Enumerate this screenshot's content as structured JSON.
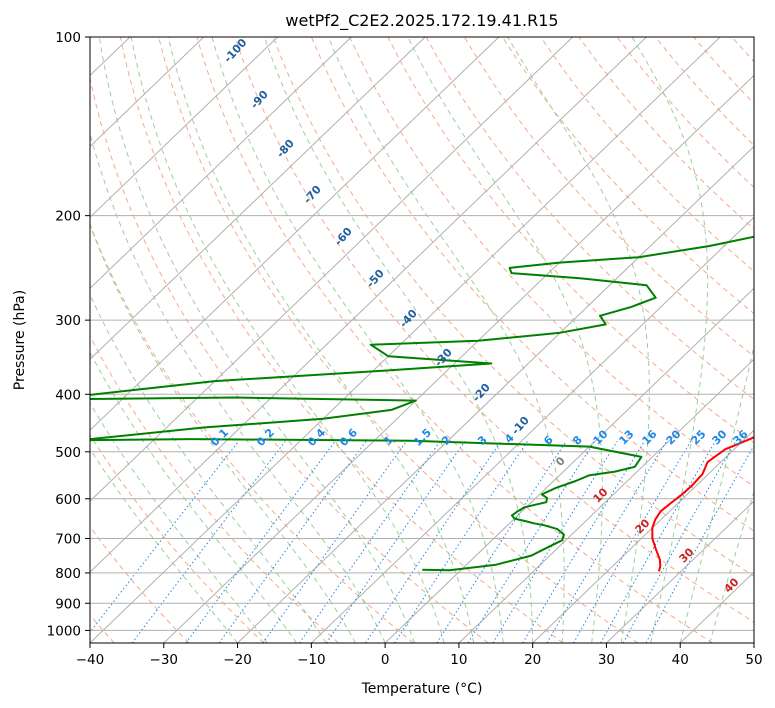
{
  "chart_data": {
    "type": "line",
    "title": "wetPf2_C2E2.2025.172.19.41.R15",
    "xlabel": "Temperature (°C)",
    "ylabel": "Pressure (hPa)",
    "xlim": [
      -40,
      50
    ],
    "ylim": [
      1050,
      100
    ],
    "y_scale": "log",
    "x_ticks": [
      "−40",
      "−30",
      "−20",
      "−10",
      "0",
      "10",
      "20",
      "30",
      "40",
      "50"
    ],
    "x_tick_values": [
      -40,
      -30,
      -20,
      -10,
      0,
      10,
      20,
      30,
      40,
      50
    ],
    "y_ticks": [
      "100",
      "200",
      "300",
      "400",
      "500",
      "600",
      "700",
      "800",
      "900",
      "1000"
    ],
    "y_tick_values": [
      100,
      200,
      300,
      400,
      500,
      600,
      700,
      800,
      900,
      1000
    ],
    "grid": true,
    "skew": "skew-T log-p",
    "series": [
      {
        "role": "temperature",
        "color": "#ff0000",
        "points": [
          [
            27.0,
            795
          ],
          [
            26.5,
            780
          ],
          [
            25.5,
            760
          ],
          [
            23.5,
            730
          ],
          [
            21.5,
            700
          ],
          [
            20.0,
            672
          ],
          [
            19.2,
            650
          ],
          [
            18.8,
            630
          ],
          [
            19.0,
            610
          ],
          [
            19.3,
            590
          ],
          [
            19.4,
            570
          ],
          [
            19.2,
            545
          ],
          [
            18.2,
            520
          ],
          [
            18.8,
            495
          ],
          [
            20.8,
            475
          ],
          [
            21.7,
            460
          ],
          [
            21.2,
            440
          ],
          [
            20.3,
            425
          ],
          [
            20.6,
            410
          ],
          [
            20.5,
            390
          ],
          [
            19.8,
            375
          ],
          [
            18.5,
            360
          ],
          [
            17.0,
            340
          ],
          [
            15.7,
            320
          ],
          [
            14.6,
            303
          ],
          [
            13.8,
            290
          ],
          [
            12.8,
            278
          ],
          [
            11.6,
            265
          ],
          [
            10.4,
            251
          ],
          [
            9.2,
            240
          ],
          [
            8.0,
            228
          ],
          [
            6.8,
            217
          ],
          [
            5.5,
            205
          ],
          [
            4.2,
            193
          ],
          [
            3.0,
            180
          ],
          [
            1.8,
            168
          ],
          [
            0.9,
            158
          ],
          [
            0.4,
            150
          ],
          [
            0.5,
            140
          ],
          [
            0.8,
            130
          ],
          [
            1.5,
            121
          ],
          [
            2.5,
            114
          ],
          [
            3.4,
            108
          ],
          [
            4.2,
            103
          ],
          [
            4.9,
            100
          ]
        ]
      },
      {
        "role": "dewpoint",
        "color": "#008000",
        "points": [
          [
            -5.3,
            790
          ],
          [
            -1.5,
            792
          ],
          [
            4.0,
            775
          ],
          [
            7.5,
            748
          ],
          [
            8.3,
            730
          ],
          [
            9.5,
            705
          ],
          [
            9.0,
            690
          ],
          [
            7.3,
            675
          ],
          [
            5.0,
            665
          ],
          [
            3.3,
            660
          ],
          [
            2.0,
            655
          ],
          [
            0.0,
            648
          ],
          [
            -0.8,
            640
          ],
          [
            -0.6,
            630
          ],
          [
            -0.2,
            620
          ],
          [
            2.0,
            608
          ],
          [
            1.5,
            598
          ],
          [
            0.3,
            590
          ],
          [
            1.3,
            575
          ],
          [
            3.0,
            560
          ],
          [
            4.0,
            548
          ],
          [
            7.0,
            540
          ],
          [
            9.0,
            530
          ],
          [
            8.5,
            510
          ],
          [
            0.0,
            490
          ],
          [
            -25.0,
            479
          ],
          [
            -55.0,
            476
          ],
          [
            -70.0,
            478
          ],
          [
            -55.0,
            455
          ],
          [
            -40.0,
            440
          ],
          [
            -32.0,
            425
          ],
          [
            -30.0,
            410
          ],
          [
            -55.0,
            405
          ],
          [
            -80.0,
            408
          ],
          [
            -60.0,
            380
          ],
          [
            -40.0,
            366
          ],
          [
            -25.0,
            355
          ],
          [
            -40.0,
            345
          ],
          [
            -44.0,
            330
          ],
          [
            -30.0,
            325
          ],
          [
            -20.0,
            315
          ],
          [
            -15.0,
            305
          ],
          [
            -17.0,
            295
          ],
          [
            -14.0,
            285
          ],
          [
            -12.0,
            275
          ],
          [
            -15.0,
            262
          ],
          [
            -25.0,
            255
          ],
          [
            -35.0,
            250
          ],
          [
            -36.0,
            245
          ],
          [
            -30.0,
            240
          ],
          [
            -20.0,
            235
          ],
          [
            -12.0,
            225
          ],
          [
            -6.0,
            215
          ],
          [
            -3.0,
            205
          ],
          [
            -1.5,
            195
          ],
          [
            -0.2,
            185
          ],
          [
            0.3,
            175
          ],
          [
            0.0,
            165
          ],
          [
            -0.8,
            158
          ],
          [
            -1.2,
            150
          ],
          [
            -1.0,
            143
          ],
          [
            -0.8,
            135
          ],
          [
            -0.8,
            125
          ],
          [
            -0.5,
            118
          ],
          [
            0.0,
            110
          ],
          [
            0.8,
            103
          ],
          [
            1.4,
            100
          ]
        ]
      }
    ],
    "mixing_ratio_labels": [
      "0.1",
      "0.2",
      "0.4",
      "0.6",
      "1",
      "1.5",
      "2",
      "3",
      "4",
      "6",
      "8",
      "10",
      "13",
      "16",
      "20",
      "25",
      "30",
      "36"
    ],
    "mixing_ratio_values": [
      0.1,
      0.2,
      0.4,
      0.6,
      1,
      1.5,
      2,
      3,
      4,
      6,
      8,
      10,
      13,
      16,
      20,
      25,
      30,
      36
    ],
    "moist_adiabat_labels": [
      "-100",
      "-90",
      "-80",
      "-70",
      "-60",
      "-50",
      "-40",
      "-30",
      "-20",
      "-10"
    ],
    "moist_adiabat_values": [
      -100,
      -90,
      -80,
      -70,
      -60,
      -50,
      -40,
      -30,
      -20,
      -10
    ],
    "wet_bulb_labels": [
      "0",
      "10",
      "20",
      "30",
      "40"
    ],
    "wet_bulb_values": [
      0,
      10,
      20,
      30,
      40
    ],
    "colors": {
      "isotherm": "#b0b0b0",
      "isobar": "#b0b0b0",
      "dry_adiabat": "#f7a889",
      "moist_adiabat": "#9ccf9c",
      "mixing_ratio": "#1e88e5",
      "mixing_label": "#1e88e5",
      "moist_label": "#1f5fa0",
      "wet_bulb_label": "#cc2222",
      "freezing_label": "#808080",
      "temperature": "#ff0000",
      "dewpoint": "#008000"
    }
  }
}
